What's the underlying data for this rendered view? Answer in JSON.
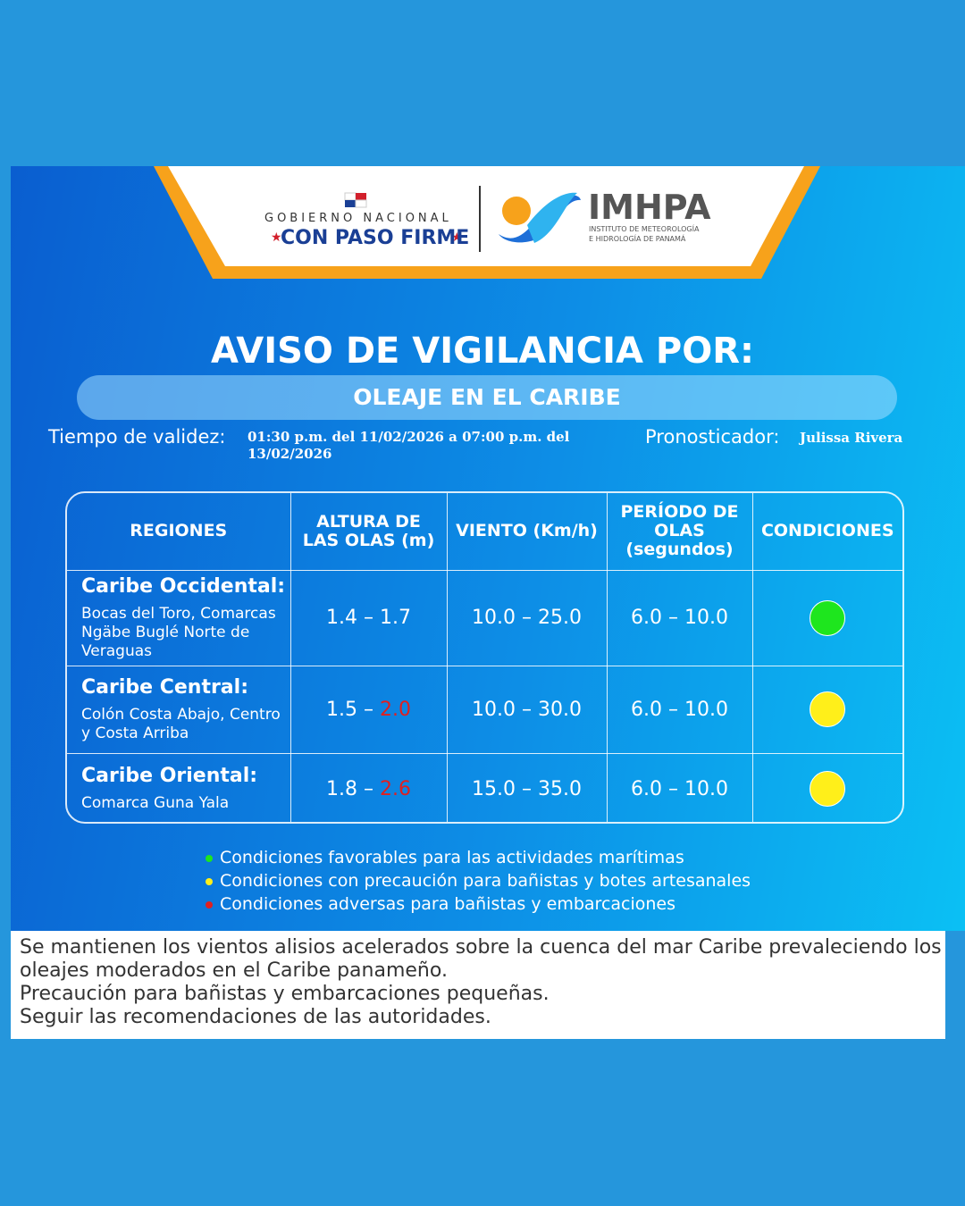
{
  "header": {
    "gov_top": "GOBIERNO NACIONAL",
    "gov_motto": "CON PASO FIRME",
    "logo": "IMHPA",
    "logo_sub_1": "INSTITUTO DE METEOROLOGÍA",
    "logo_sub_2": "E HIDROLOGÍA DE PANAMÁ"
  },
  "title": "AVISO DE VIGILANCIA POR:",
  "subtitle": "OLEAJE EN EL CARIBE",
  "validity": {
    "label": "Tiempo de validez:",
    "value": "01:30 p.m. del 11/02/2026 a 07:00 p.m. del 13/02/2026"
  },
  "forecaster": {
    "label": "Pronosticador:",
    "value": "Julissa Rivera"
  },
  "table": {
    "headers": [
      "REGIONES",
      "ALTURA DE LAS OLAS (m)",
      "VIENTO (Km/h)",
      "PERÍODO DE OLAS (segundos)",
      "CONDICIONES"
    ],
    "rows": [
      {
        "region": "Caribe Occidental:",
        "areas": "Bocas del Toro, Comarcas Ngäbe Buglé Norte de Veraguas",
        "wave_low": "1.4 – ",
        "wave_high": "1.7",
        "wave_high_color": "#ffffff",
        "wind": "10.0 – 25.0",
        "period": "6.0 – 10.0",
        "condition": "#1ee61e"
      },
      {
        "region": "Caribe Central:",
        "areas": "Colón Costa Abajo, Centro y Costa Arriba",
        "wave_low": "1.5 – ",
        "wave_high": "2.0",
        "wave_high_color": "#e02020",
        "wind": "10.0 – 30.0",
        "period": "6.0 – 10.0",
        "condition": "#ffef1a"
      },
      {
        "region": "Caribe Oriental:",
        "areas": "Comarca Guna Yala",
        "wave_low": "1.8 – ",
        "wave_high": "2.6",
        "wave_high_color": "#e02020",
        "wind": "15.0 – 35.0",
        "period": "6.0 – 10.0",
        "condition": "#ffef1a"
      }
    ]
  },
  "legend": [
    {
      "color": "#1ee61e",
      "text": "Condiciones favorables para las actividades marítimas"
    },
    {
      "color": "#ffef1a",
      "text": "Condiciones con precaución para bañistas y botes artesanales"
    },
    {
      "color": "#e02020",
      "text": "Condiciones adversas para bañistas y embarcaciones"
    }
  ],
  "notes": [
    "Se mantienen los vientos alisios acelerados sobre la cuenca del mar Caribe prevaleciendo los oleajes moderados en el Caribe panameño.",
    "Precaución para bañistas y embarcaciones pequeñas.",
    "Seguir las recomendaciones de las autoridades."
  ]
}
